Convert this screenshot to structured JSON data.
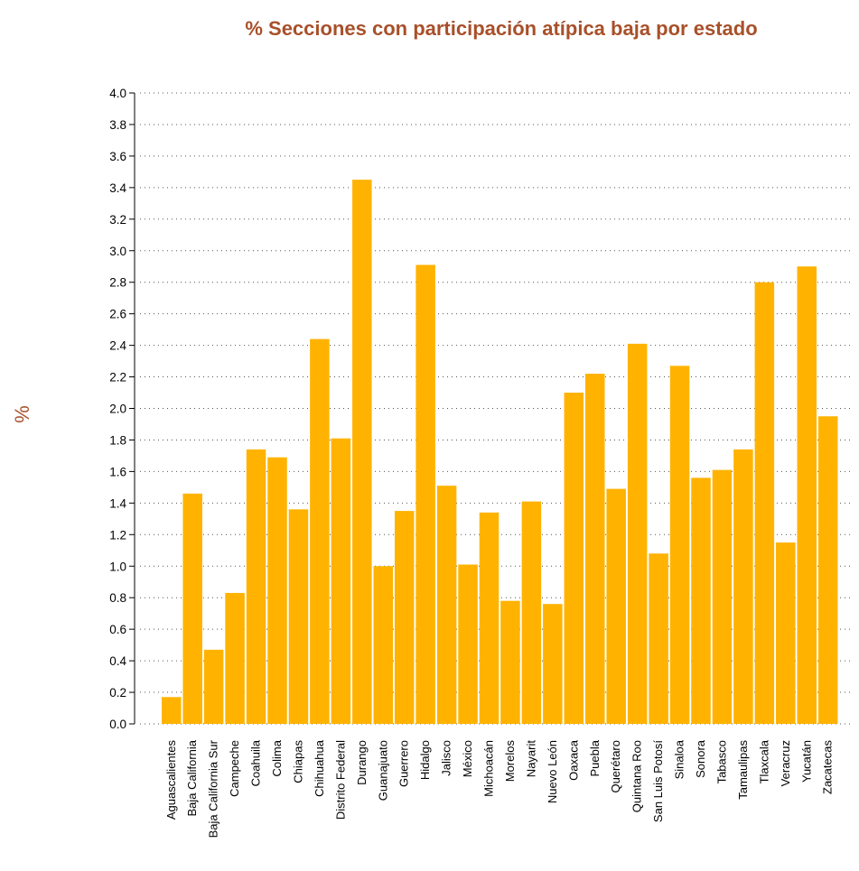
{
  "chart_data": {
    "type": "bar",
    "title": "% Secciones con participación atípica baja por estado",
    "xlabel": "",
    "ylabel": "%",
    "ylim": [
      0,
      4.0
    ],
    "yticks": [
      "0.0",
      "0.2",
      "0.4",
      "0.6",
      "0.8",
      "1.0",
      "1.2",
      "1.4",
      "1.6",
      "1.8",
      "2.0",
      "2.2",
      "2.4",
      "2.6",
      "2.8",
      "3.0",
      "3.2",
      "3.4",
      "3.6",
      "3.8",
      "4.0"
    ],
    "grid": true,
    "categories": [
      "Aguascalientes",
      "Baja California",
      "Baja California Sur",
      "Campeche",
      "Coahuila",
      "Colima",
      "Chiapas",
      "Chihuahua",
      "Distrito Federal",
      "Durango",
      "Guanajuato",
      "Guerrero",
      "Hidalgo",
      "Jalisco",
      "México",
      "Michoacán",
      "Morelos",
      "Nayarit",
      "Nuevo León",
      "Oaxaca",
      "Puebla",
      "Querétaro",
      "Quintana Roo",
      "San Luis Potosí",
      "Sinaloa",
      "Sonora",
      "Tabasco",
      "Tamaulipas",
      "Tlaxcala",
      "Veracruz",
      "Yucatán",
      "Zacatecas"
    ],
    "values": [
      0.17,
      1.46,
      0.47,
      0.83,
      1.74,
      1.69,
      1.36,
      2.44,
      1.81,
      3.45,
      1.0,
      1.35,
      2.91,
      1.51,
      1.01,
      1.34,
      0.78,
      1.41,
      0.76,
      2.1,
      2.22,
      1.49,
      2.41,
      1.08,
      2.27,
      1.56,
      1.61,
      1.74,
      2.8,
      1.15,
      2.9,
      1.95
    ]
  },
  "colors": {
    "bar": "#FFB300",
    "title": "#A8502A",
    "ylabel": "#A8502A",
    "grid": "#555555",
    "axis": "#000000"
  }
}
